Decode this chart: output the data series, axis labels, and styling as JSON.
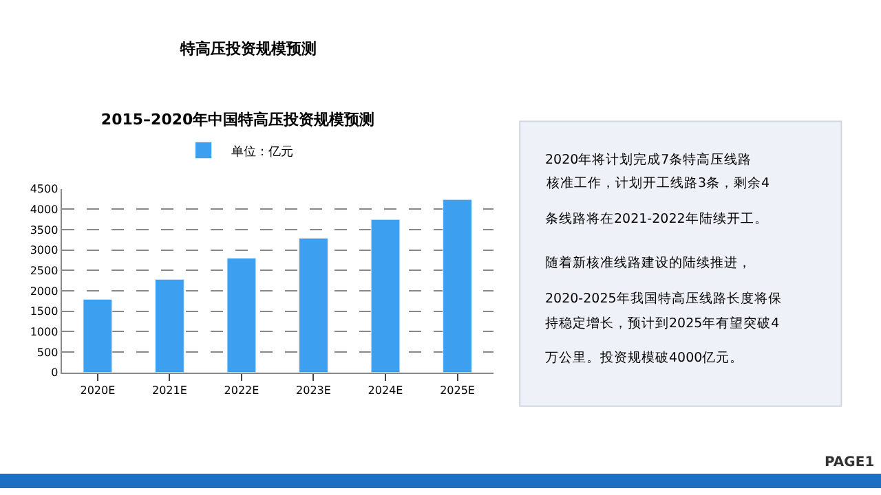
{
  "chart_data": {
    "type": "bar",
    "title": "2015–2020年中国特高压投资规模预测",
    "categories": [
      "2020E",
      "2021E",
      "2022E",
      "2023E",
      "2024E",
      "2025E"
    ],
    "series": [
      {
        "name": "单位：亿元",
        "color": "#3d9ff0",
        "values": [
          1790,
          2280,
          2800,
          3290,
          3750,
          4240
        ]
      }
    ],
    "ylim": [
      0,
      4500
    ],
    "yticks": [
      0,
      500,
      1000,
      1500,
      2000,
      2500,
      3000,
      3500,
      4000,
      4500
    ],
    "grid": "y",
    "legend": "top",
    "annotations": [
      "特高压投资规模预测",
      "2020年将计划完成7条特高压线路",
      "核准工作，计划开工线路3条，剩余4",
      "条线路将在2021-2022年陆续开工。",
      "随着新核准线路建设的陆续推进，",
      "2020-2025年我国特高压线路长度将保",
      "持稳定增长，预计到2025年有望突破4",
      "万公里。投资规模破4000亿元。",
      "PAGE1"
    ]
  }
}
